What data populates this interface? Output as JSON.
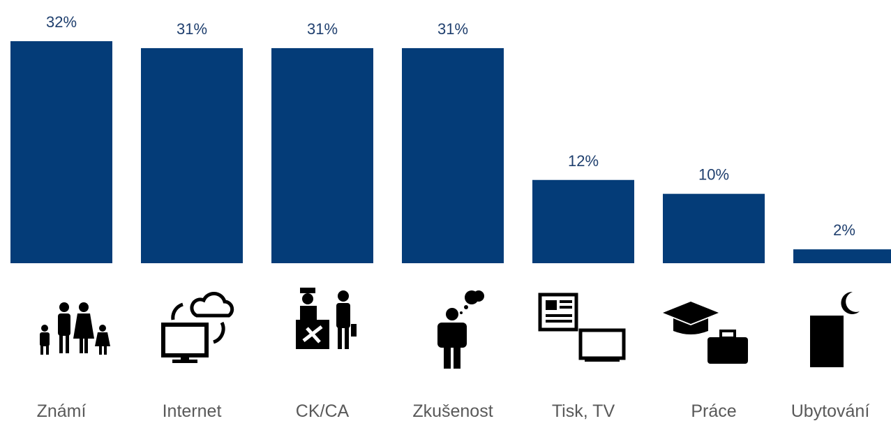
{
  "chart_data": {
    "type": "bar",
    "categories": [
      "Známí",
      "Internet",
      "CK/CA",
      "Zkušenost",
      "Tisk, TV",
      "Práce",
      "Ubytování"
    ],
    "values": [
      32,
      31,
      31,
      31,
      12,
      10,
      2
    ],
    "value_labels": [
      "32%",
      "31%",
      "31%",
      "31%",
      "12%",
      "10%",
      "2%"
    ],
    "color": "#043c78"
  }
}
